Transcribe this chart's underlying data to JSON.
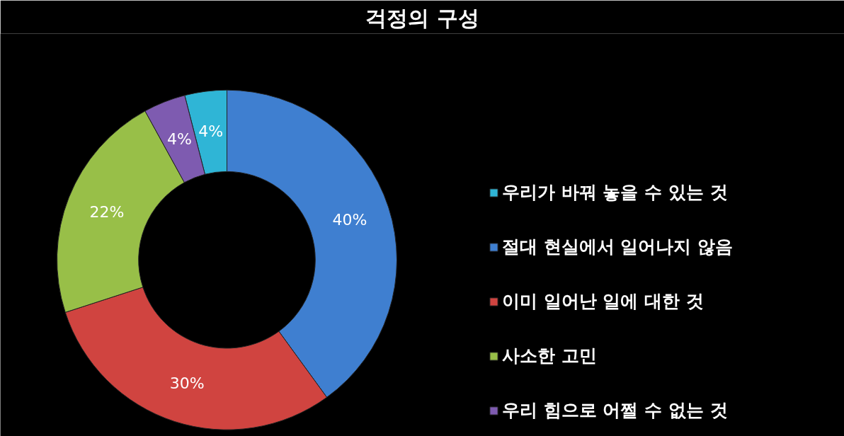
{
  "chart_data": {
    "type": "donut",
    "title": "걱정의 구성",
    "categories": [
      "우리가 바꿔 놓을 수 있는 것",
      "절대 현실에서 일어나지 않음",
      "이미 일어난 일에 대한 것",
      "사소한 고민",
      "우리 힘으로 어쩔 수 없는 것"
    ],
    "values": [
      4,
      40,
      30,
      22,
      4
    ],
    "colors": [
      "#2fb5d6",
      "#3f7fd0",
      "#d04440",
      "#98bf48",
      "#7e5bb0"
    ],
    "value_labels": [
      "4%",
      "40%",
      "30%",
      "22%",
      "4%"
    ],
    "legend": "right"
  }
}
